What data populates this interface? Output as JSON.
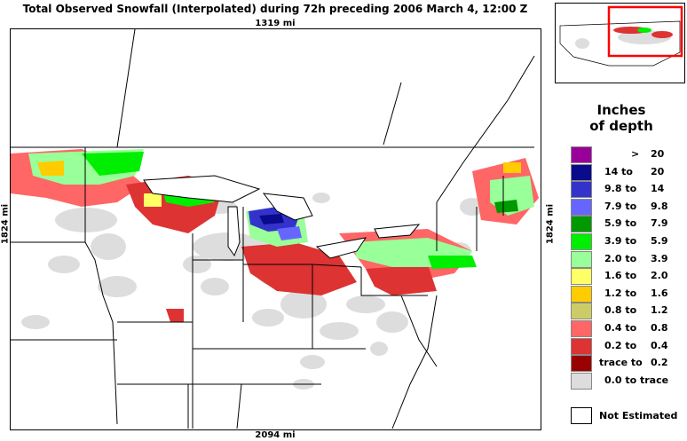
{
  "title": "Total Observed Snowfall (Interpolated) during 72h preceding 2006 March 4, 12:00 Z",
  "scale": {
    "top": "1319 mi",
    "bottom": "2094 mi",
    "left": "1824 mi",
    "right": "1824 mi"
  },
  "legend": {
    "title_line1": "Inches",
    "title_line2": "of depth",
    "items": [
      {
        "from": ">",
        "to": "20",
        "color": "#990099"
      },
      {
        "from": "14 to",
        "to": "20",
        "color": "#0a0a8c"
      },
      {
        "from": "9.8 to",
        "to": "14",
        "color": "#3333cc"
      },
      {
        "from": "7.9 to",
        "to": "9.8",
        "color": "#6666ff"
      },
      {
        "from": "5.9 to",
        "to": "7.9",
        "color": "#009900"
      },
      {
        "from": "3.9 to",
        "to": "5.9",
        "color": "#00ee00"
      },
      {
        "from": "2.0 to",
        "to": "3.9",
        "color": "#99ff99"
      },
      {
        "from": "1.6 to",
        "to": "2.0",
        "color": "#ffff66"
      },
      {
        "from": "1.2 to",
        "to": "1.6",
        "color": "#ffcc00"
      },
      {
        "from": "0.8 to",
        "to": "1.2",
        "color": "#cccc66"
      },
      {
        "from": "0.4 to",
        "to": "0.8",
        "color": "#ff6666"
      },
      {
        "from": "0.2 to",
        "to": "0.4",
        "color": "#dd3333"
      },
      {
        "from": "trace to",
        "to": "0.2",
        "color": "#990000"
      },
      {
        "from": "0.0 to trace",
        "to": "",
        "color": "#dddddd"
      }
    ],
    "not_estimated": "Not Estimated"
  },
  "inset": {
    "highlight_color": "#ff0000"
  }
}
